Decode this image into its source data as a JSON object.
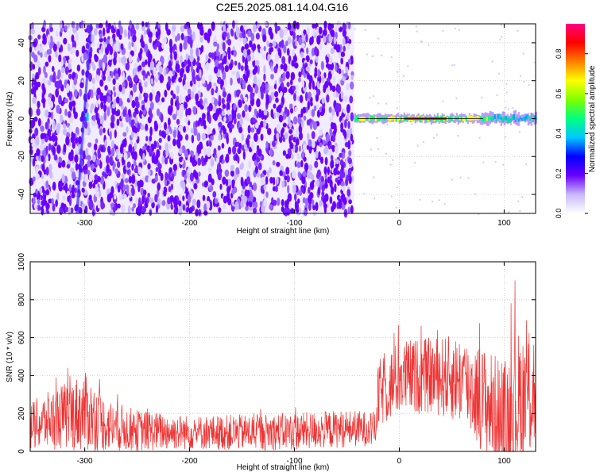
{
  "title": "C2E5.2025.081.14.04.G16",
  "chart_data": [
    {
      "type": "heatmap",
      "xlabel": "Height of straight line (km)",
      "ylabel": "Frequency (Hz)",
      "xlim": [
        -352,
        130
      ],
      "ylim": [
        -50,
        50
      ],
      "x_ticks": [
        -300,
        -200,
        -100,
        0,
        100
      ],
      "x_tick_labels": [
        "-300",
        "-200",
        "-100",
        "0",
        "100"
      ],
      "y_ticks": [
        -40,
        -20,
        0,
        20,
        40
      ],
      "y_tick_labels": [
        "-40",
        "-20",
        "0",
        "20",
        "40"
      ],
      "noise_region_end_km": -43,
      "signal_region": {
        "x_start_km": -43,
        "x_end_km": 130,
        "frequency_hz": 0
      },
      "colorbar": {
        "label": "Normalized spectral amplitude",
        "range": [
          0,
          0.95
        ],
        "ticks": [
          0.0,
          0.2,
          0.4,
          0.6,
          0.8
        ],
        "tick_labels": [
          "0.0",
          "0.2",
          "0.4",
          "0.6",
          "0.8"
        ],
        "colormap": [
          "#ffffff",
          "#c9b8ff",
          "#6a00ff",
          "#0000ff",
          "#00c8ff",
          "#00ff80",
          "#80ff00",
          "#ffff00",
          "#ff8000",
          "#ff0000",
          "#ff0080"
        ]
      },
      "grid": true
    },
    {
      "type": "line",
      "xlabel": "Height of straight line (km)",
      "ylabel": "SNR (10 * v/v)",
      "xlim": [
        -352,
        130
      ],
      "ylim": [
        0,
        1000
      ],
      "x_ticks": [
        -300,
        -200,
        -100,
        0,
        100
      ],
      "x_tick_labels": [
        "-300",
        "-200",
        "-100",
        "0",
        "100"
      ],
      "y_ticks": [
        0,
        200,
        400,
        600,
        800,
        1000
      ],
      "y_tick_labels": [
        "0",
        "200",
        "400",
        "600",
        "800",
        "1000"
      ],
      "series_color": "#ee3333",
      "envelope": {
        "x": [
          -352,
          -330,
          -300,
          -280,
          -250,
          -200,
          -150,
          -100,
          -50,
          -22,
          -20,
          0,
          30,
          60,
          90,
          100,
          110,
          130
        ],
        "mean": [
          130,
          170,
          210,
          140,
          110,
          100,
          100,
          105,
          120,
          120,
          300,
          390,
          400,
          380,
          220,
          130,
          250,
          330
        ],
        "spread": [
          130,
          160,
          210,
          140,
          110,
          90,
          95,
          100,
          100,
          90,
          180,
          200,
          200,
          240,
          300,
          350,
          380,
          350
        ]
      },
      "grid": true
    }
  ]
}
